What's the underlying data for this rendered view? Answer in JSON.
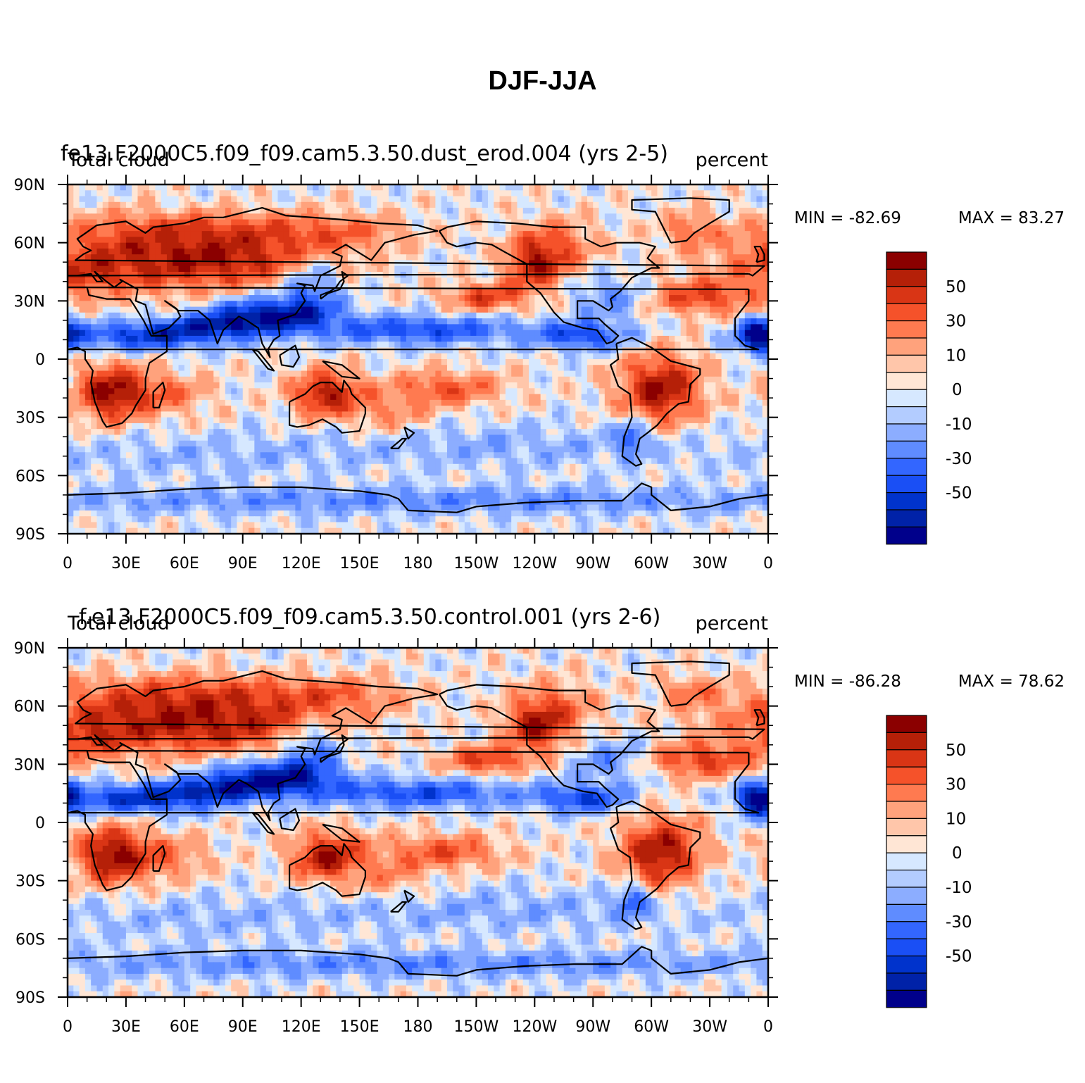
{
  "figure": {
    "title": "DJF-JJA"
  },
  "chart_data": [
    {
      "type": "heatmap",
      "title": "fe13.F2000C5.f09_f09.cam5.3.50.dust_erod.004 (yrs 2-5)",
      "left_label": "Total cloud",
      "right_label": "percent",
      "stats": {
        "min_label": "MIN = -82.69",
        "max_label": "MAX =  83.27",
        "min": -82.69,
        "max": 83.27
      },
      "xlim": [
        0,
        360
      ],
      "ylim": [
        -90,
        90
      ],
      "x_ticks": [
        "0",
        "30E",
        "60E",
        "90E",
        "120E",
        "150E",
        "180",
        "150W",
        "120W",
        "90W",
        "60W",
        "30W",
        "0"
      ],
      "y_ticks": [
        "90N",
        "60N",
        "30N",
        "0",
        "30S",
        "60S",
        "90S"
      ],
      "colorbar": {
        "levels": [
          -70,
          -60,
          -50,
          -40,
          -30,
          -20,
          -10,
          -5,
          0,
          5,
          10,
          20,
          30,
          40,
          50,
          60,
          70
        ],
        "colors": [
          "#00008b",
          "#0022a8",
          "#0033cc",
          "#1a4ff5",
          "#3366ff",
          "#5f8cff",
          "#8cadff",
          "#b3ccff",
          "#d6e8ff",
          "#ffe6d5",
          "#ffc6aa",
          "#ffa27c",
          "#ff7a50",
          "#f5522a",
          "#d93515",
          "#b52008",
          "#8b0000"
        ],
        "labels": [
          "50",
          "30",
          "10",
          "0",
          "-10",
          "-30",
          "-50"
        ]
      }
    },
    {
      "type": "heatmap",
      "title": "f.e13.F2000C5.f09_f09.cam5.3.50.control.001 (yrs 2-6)",
      "left_label": "Total cloud",
      "right_label": "percent",
      "stats": {
        "min_label": "MIN = -86.28",
        "max_label": "MAX =  78.62",
        "min": -86.28,
        "max": 78.62
      },
      "xlim": [
        0,
        360
      ],
      "ylim": [
        -90,
        90
      ],
      "x_ticks": [
        "0",
        "30E",
        "60E",
        "90E",
        "120E",
        "150E",
        "180",
        "150W",
        "120W",
        "90W",
        "60W",
        "30W",
        "0"
      ],
      "y_ticks": [
        "90N",
        "60N",
        "30N",
        "0",
        "30S",
        "60S",
        "90S"
      ],
      "colorbar": {
        "levels": [
          -70,
          -60,
          -50,
          -40,
          -30,
          -20,
          -10,
          -5,
          0,
          5,
          10,
          20,
          30,
          40,
          50,
          60,
          70
        ],
        "colors": [
          "#00008b",
          "#0022a8",
          "#0033cc",
          "#1a4ff5",
          "#3366ff",
          "#5f8cff",
          "#8cadff",
          "#b3ccff",
          "#d6e8ff",
          "#ffe6d5",
          "#ffc6aa",
          "#ffa27c",
          "#ff7a50",
          "#f5522a",
          "#d93515",
          "#b52008",
          "#8b0000"
        ],
        "labels": [
          "50",
          "30",
          "10",
          "0",
          "-10",
          "-30",
          "-50"
        ]
      }
    }
  ]
}
